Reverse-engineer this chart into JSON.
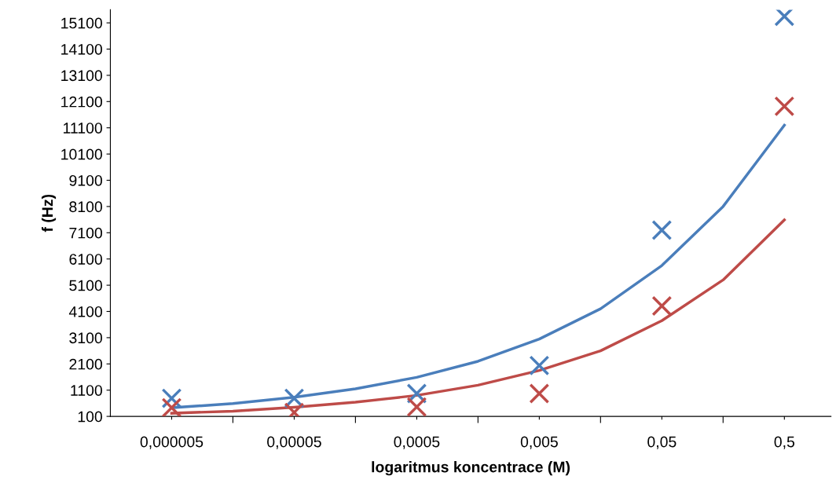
{
  "chart_data": {
    "type": "scatter",
    "xlabel": "logaritmus koncentrace (M)",
    "ylabel": "f (Hz)",
    "log": "x",
    "grid": false,
    "line_style": "solid",
    "xlim": [
      1.58e-06,
      1.2
    ],
    "xticks": [
      {
        "value": 5e-06,
        "label": "0,000005"
      },
      {
        "value": 1.58e-05,
        "label": null
      },
      {
        "value": 5e-05,
        "label": "0,00005"
      },
      {
        "value": 0.000158,
        "label": null
      },
      {
        "value": 0.0005,
        "label": "0,0005"
      },
      {
        "value": 0.00158,
        "label": null
      },
      {
        "value": 0.005,
        "label": "0,005"
      },
      {
        "value": 0.0158,
        "label": null
      },
      {
        "value": 0.05,
        "label": "0,05"
      },
      {
        "value": 0.158,
        "label": null
      },
      {
        "value": 0.5,
        "label": "0,5"
      }
    ],
    "ylim": [
      100,
      15600
    ],
    "yticks": [
      100,
      1100,
      2100,
      3100,
      4100,
      5100,
      6100,
      7100,
      8100,
      9100,
      10100,
      11100,
      12100,
      13100,
      14100,
      15100
    ],
    "series": [
      {
        "color": "#4a7ebb",
        "marker": "cross",
        "x": [
          5e-06,
          5e-05,
          0.0005,
          0.005,
          0.05,
          0.5
        ],
        "values": [
          790,
          790,
          970,
          2040,
          7200,
          15350
        ]
      },
      {
        "color": "#be4b48",
        "marker": "cross",
        "x": [
          5e-06,
          5e-05,
          0.0005,
          0.005,
          0.05,
          0.5
        ],
        "values": [
          430,
          250,
          460,
          970,
          4310,
          11920
        ]
      },
      {
        "type": "line",
        "color": "#4a7ebb",
        "marker": "none",
        "x": [
          5e-06,
          1.58e-05,
          5e-05,
          0.000158,
          0.0005,
          0.00158,
          0.005,
          0.0158,
          0.05,
          0.158,
          0.5
        ],
        "values": [
          430,
          590,
          830,
          1150,
          1590,
          2200,
          3050,
          4200,
          5850,
          8100,
          11200
        ]
      },
      {
        "type": "line",
        "color": "#be4b48",
        "marker": "none",
        "x": [
          5e-06,
          1.58e-05,
          5e-05,
          0.000158,
          0.0005,
          0.00158,
          0.005,
          0.0158,
          0.05,
          0.158,
          0.5
        ],
        "values": [
          220,
          300,
          450,
          640,
          900,
          1290,
          1850,
          2600,
          3750,
          5300,
          7590
        ]
      }
    ]
  }
}
